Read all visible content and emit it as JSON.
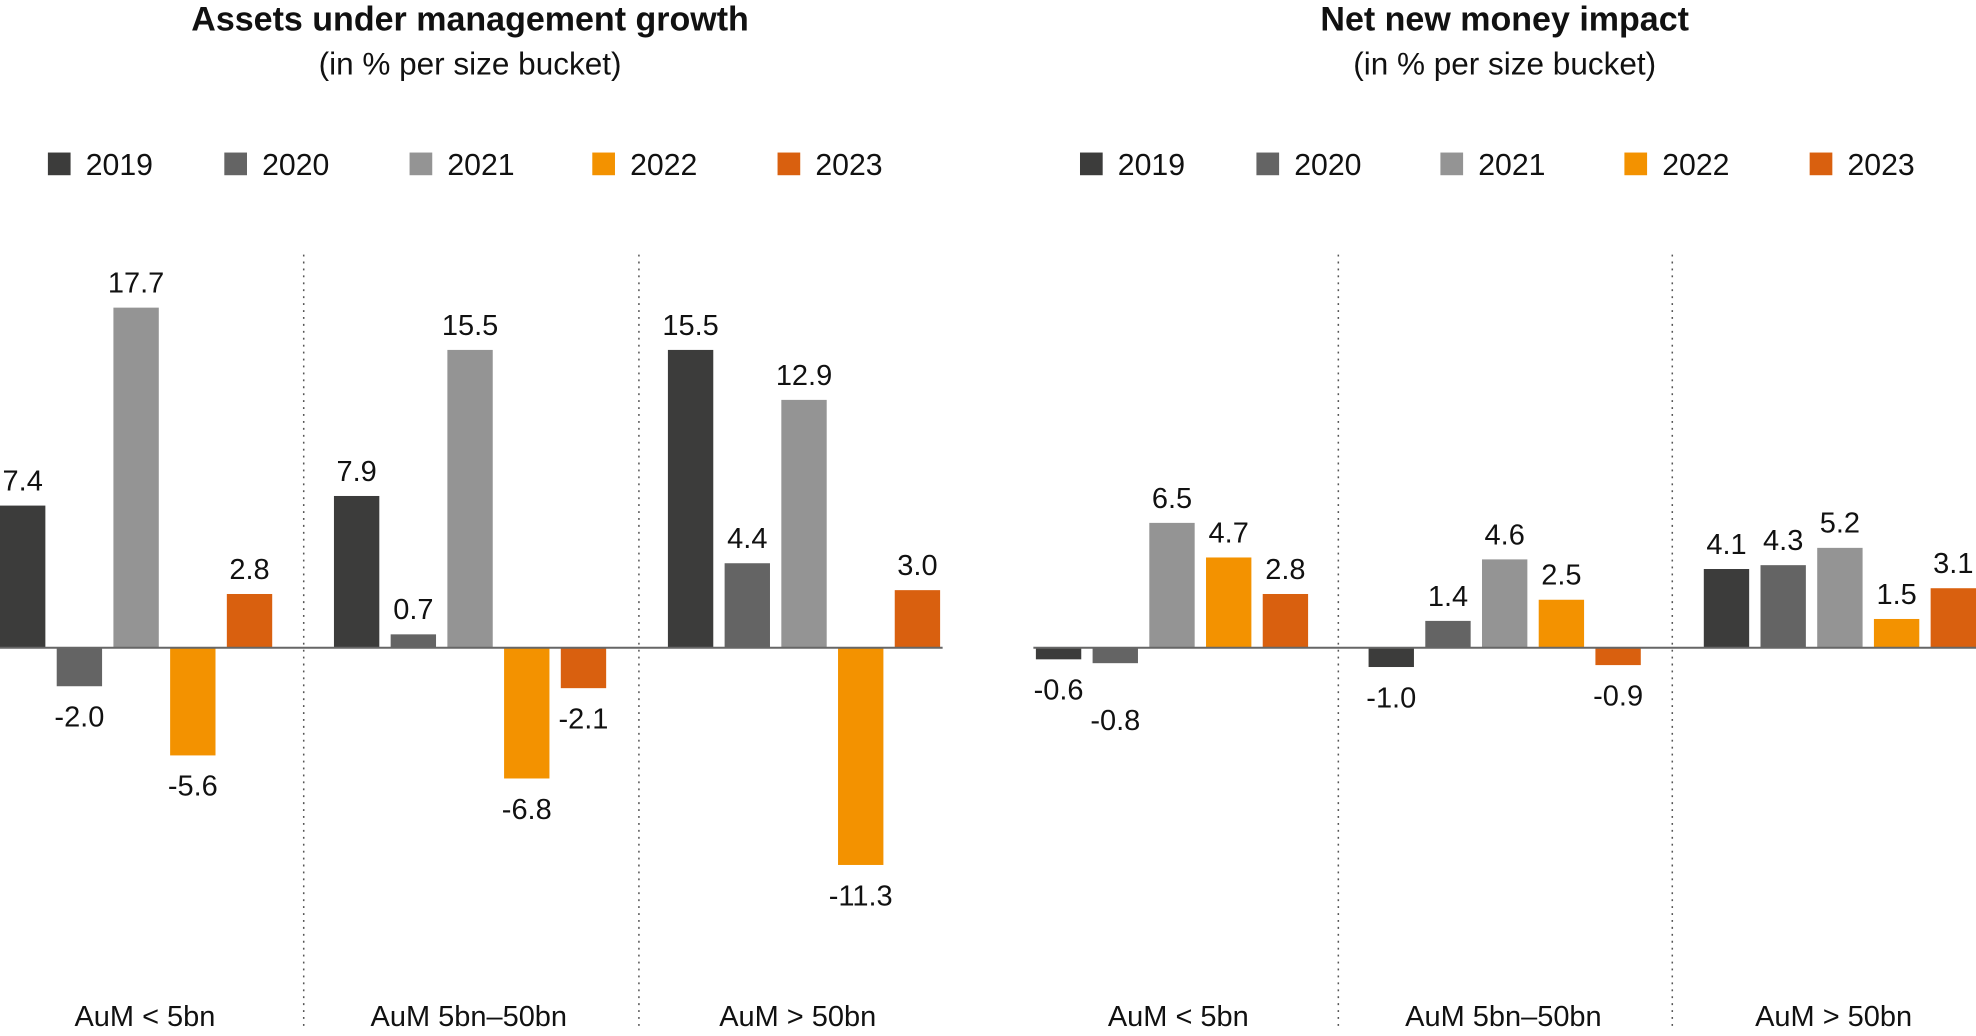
{
  "colors": {
    "2019": "#3c3c3b",
    "2020": "#646464",
    "2021": "#949494",
    "2022": "#f39200",
    "2023": "#d9600f"
  },
  "chart_data": [
    {
      "type": "bar",
      "title": "Assets under management growth",
      "subtitle": "(in % per size bucket)",
      "legend_placement": "top",
      "grid": false,
      "categories": [
        "AuM < 5bn",
        "AuM 5bn–50bn",
        "AuM > 50bn"
      ],
      "series": [
        {
          "name": "2019",
          "values": [
            7.4,
            7.9,
            15.5
          ]
        },
        {
          "name": "2020",
          "values": [
            -2.0,
            0.7,
            4.4
          ]
        },
        {
          "name": "2021",
          "values": [
            17.7,
            15.5,
            12.9
          ]
        },
        {
          "name": "2022",
          "values": [
            -5.6,
            -6.8,
            -11.3
          ]
        },
        {
          "name": "2023",
          "values": [
            2.8,
            -2.1,
            3.0
          ]
        }
      ]
    },
    {
      "type": "bar",
      "title": "Net new money impact",
      "subtitle": "(in % per size bucket)",
      "legend_placement": "top",
      "grid": false,
      "categories": [
        "AuM < 5bn",
        "AuM 5bn–50bn",
        "AuM > 50bn"
      ],
      "series": [
        {
          "name": "2019",
          "values": [
            -0.6,
            -1.0,
            4.1
          ]
        },
        {
          "name": "2020",
          "values": [
            -0.8,
            1.4,
            4.3
          ]
        },
        {
          "name": "2021",
          "values": [
            6.5,
            4.6,
            5.2
          ]
        },
        {
          "name": "2022",
          "values": [
            4.7,
            2.5,
            1.5
          ]
        },
        {
          "name": "2023",
          "values": [
            2.8,
            -0.9,
            3.1
          ]
        }
      ]
    }
  ]
}
